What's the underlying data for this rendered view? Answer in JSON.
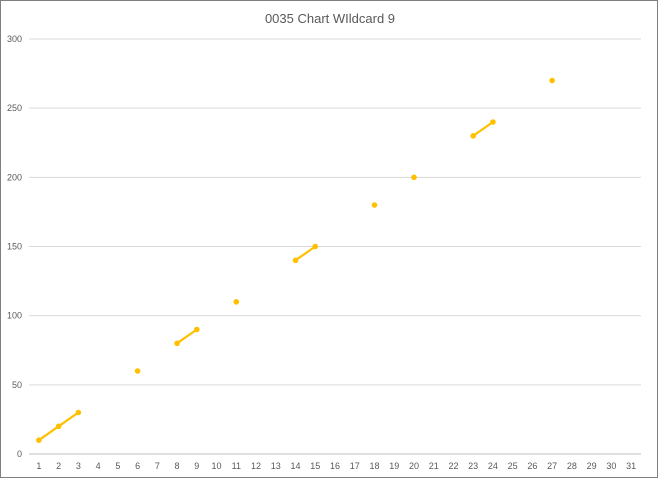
{
  "chart_data": {
    "type": "line",
    "title": "0035 Chart WIldcard 9",
    "xlabel": "",
    "ylabel": "",
    "x": [
      1,
      2,
      3,
      4,
      5,
      6,
      7,
      8,
      9,
      10,
      11,
      12,
      13,
      14,
      15,
      16,
      17,
      18,
      19,
      20,
      21,
      22,
      23,
      24,
      25,
      26,
      27,
      28,
      29,
      30,
      31
    ],
    "series": [
      {
        "color": "#FFC000",
        "values": [
          10,
          20,
          30,
          null,
          null,
          60,
          null,
          80,
          90,
          null,
          110,
          null,
          null,
          140,
          150,
          null,
          null,
          180,
          null,
          200,
          null,
          null,
          230,
          240,
          null,
          null,
          270,
          null,
          null,
          null,
          null
        ]
      }
    ],
    "ylim": [
      0,
      300
    ],
    "yticks": [
      0,
      50,
      100,
      150,
      200,
      250,
      300
    ],
    "grid": "horizontal",
    "legend": "none"
  }
}
